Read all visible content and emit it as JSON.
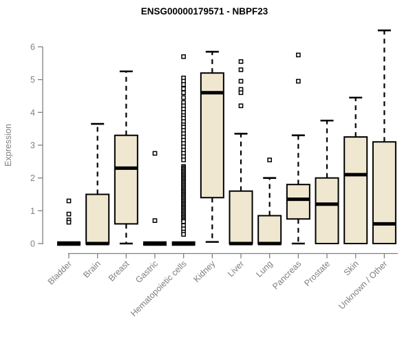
{
  "chart_data": {
    "type": "boxplot",
    "title": "ENSG00000179571 - NBPF23",
    "ylabel": "Expression",
    "xlabel": "",
    "ylim": [
      0,
      6.6
    ],
    "yticks": [
      0,
      1,
      2,
      3,
      4,
      5,
      6
    ],
    "grid": false,
    "legend": "none",
    "categories": [
      "Bladder",
      "Brain",
      "Breast",
      "Gastric",
      "Hematopoietic cells",
      "Kidney",
      "Liver",
      "Lung",
      "Pancreas",
      "Prostate",
      "Skin",
      "Unknown / Other"
    ],
    "series": [
      {
        "name": "Bladder",
        "q1": 0,
        "median": 0,
        "q3": 0,
        "whisker_low": 0,
        "whisker_high": 0,
        "outliers": [
          1.3,
          0.9,
          0.72,
          0.65
        ]
      },
      {
        "name": "Brain",
        "q1": 0,
        "median": 0,
        "q3": 1.5,
        "whisker_low": 0,
        "whisker_high": 3.65,
        "outliers": []
      },
      {
        "name": "Breast",
        "q1": 0.6,
        "median": 2.3,
        "q3": 3.3,
        "whisker_low": 0,
        "whisker_high": 5.25,
        "outliers": []
      },
      {
        "name": "Gastric",
        "q1": 0,
        "median": 0,
        "q3": 0,
        "whisker_low": 0,
        "whisker_high": 0,
        "outliers": [
          2.75,
          0.7
        ]
      },
      {
        "name": "Hematopoietic cells",
        "q1": 0,
        "median": 0,
        "q3": 0,
        "whisker_low": 0,
        "whisker_high": 0,
        "outliers": [
          5.7,
          5.05,
          4.95,
          4.85,
          4.72,
          4.6,
          4.45,
          4.3,
          4.2,
          4.1,
          4.0,
          3.9,
          3.82,
          3.72,
          3.62,
          3.55,
          3.45,
          3.35,
          3.25,
          3.15,
          3.05,
          2.95,
          2.85,
          2.75,
          2.65,
          2.55,
          2.35,
          2.31,
          2.27,
          2.23,
          2.19,
          2.15,
          2.11,
          2.07,
          2.03,
          1.99,
          1.95,
          1.91,
          1.87,
          1.83,
          1.79,
          1.75,
          1.71,
          1.67,
          1.63,
          1.59,
          1.55,
          1.51,
          1.47,
          1.43,
          1.39,
          1.35,
          1.31,
          1.27,
          1.23,
          1.19,
          1.15,
          1.11,
          1.07,
          1.03,
          0.99,
          0.95,
          0.91,
          0.87,
          0.83,
          0.79,
          0.75,
          0.71,
          0.67,
          0.55,
          0.45,
          0.35,
          0.28
        ]
      },
      {
        "name": "Kidney",
        "q1": 1.4,
        "median": 4.6,
        "q3": 5.2,
        "whisker_low": 0.05,
        "whisker_high": 5.85,
        "outliers": []
      },
      {
        "name": "Liver",
        "q1": 0,
        "median": 0,
        "q3": 1.6,
        "whisker_low": 0,
        "whisker_high": 3.35,
        "outliers": [
          5.55,
          5.3,
          4.95,
          4.7,
          4.6,
          4.2
        ]
      },
      {
        "name": "Lung",
        "q1": 0,
        "median": 0,
        "q3": 0.85,
        "whisker_low": 0,
        "whisker_high": 2.0,
        "outliers": [
          2.55
        ]
      },
      {
        "name": "Pancreas",
        "q1": 0.75,
        "median": 1.35,
        "q3": 1.8,
        "whisker_low": 0,
        "whisker_high": 3.3,
        "outliers": [
          5.75,
          4.95
        ]
      },
      {
        "name": "Prostate",
        "q1": 0,
        "median": 1.2,
        "q3": 2.0,
        "whisker_low": 0,
        "whisker_high": 3.75,
        "outliers": []
      },
      {
        "name": "Skin",
        "q1": 0,
        "median": 2.1,
        "q3": 3.25,
        "whisker_low": 0,
        "whisker_high": 4.45,
        "outliers": []
      },
      {
        "name": "Unknown / Other",
        "q1": 0,
        "median": 0.6,
        "q3": 3.1,
        "whisker_low": 0,
        "whisker_high": 6.5,
        "outliers": []
      }
    ],
    "colors": {
      "box_fill": "#EFE7CF",
      "box_stroke": "#000000",
      "median": "#000000",
      "whisker": "#000000",
      "outlier_stroke": "#000000",
      "axis": "#7F7F7F",
      "tick_label": "#7F7F7F",
      "axis_label": "#7F7F7F",
      "title": "#000000",
      "background": "#FFFFFF"
    }
  }
}
